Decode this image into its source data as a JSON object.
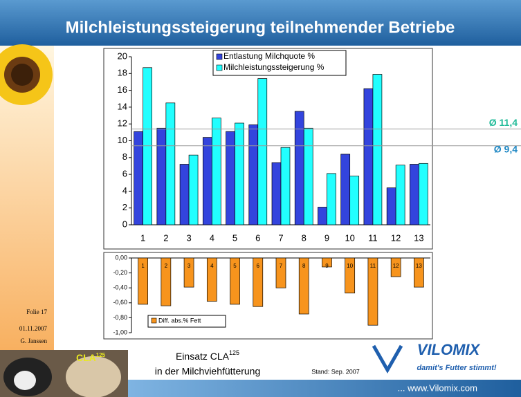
{
  "slide": {
    "title": "Milchleistungssteigerung teilnehmender Betriebe",
    "slide_number": "Folie 17",
    "date": "01.11.2007",
    "author": "G. Janssen",
    "photo_label": "CLA",
    "photo_label_sup": "125",
    "subject_line1": "Einsatz CLA",
    "subject_sup": "125",
    "subject_line2": "in der Milchviehfütterung",
    "status": "Stand: Sep. 2007",
    "brand": "VILOMIX",
    "slogan": "damit's Futter stimmt!",
    "website": "... www.Vilomix.com"
  },
  "chart_data": [
    {
      "type": "bar",
      "categories": [
        "1",
        "2",
        "3",
        "4",
        "5",
        "6",
        "7",
        "8",
        "9",
        "10",
        "11",
        "12",
        "13"
      ],
      "series": [
        {
          "name": "Entlastung Milchquote %",
          "color": "#3344dd",
          "values": [
            11.1,
            11.5,
            7.2,
            10.4,
            11.1,
            11.9,
            7.4,
            13.5,
            2.1,
            8.4,
            16.2,
            4.4,
            7.2
          ]
        },
        {
          "name": "Milchleistungssteigerung %",
          "color": "#22ffff",
          "values": [
            18.7,
            14.5,
            8.3,
            12.7,
            12.1,
            17.4,
            9.2,
            11.5,
            6.1,
            5.8,
            17.9,
            7.1,
            7.3
          ]
        }
      ],
      "ylim": [
        0,
        20
      ],
      "yticks": [
        0,
        2,
        4,
        6,
        8,
        10,
        12,
        14,
        16,
        18,
        20
      ],
      "reference_lines": [
        {
          "value": 11.4,
          "label": "Ø 11,4",
          "color": "#22bb99"
        },
        {
          "value": 9.4,
          "label": "Ø 9,4",
          "color": "#1f88c4"
        }
      ],
      "legend": "top"
    },
    {
      "type": "bar",
      "categories": [
        "1",
        "2",
        "3",
        "4",
        "5",
        "6",
        "7",
        "8",
        "9",
        "10",
        "11",
        "12",
        "13"
      ],
      "series": [
        {
          "name": "Diff. abs.% Fett",
          "color": "#f7941d",
          "values": [
            -0.62,
            -0.64,
            -0.39,
            -0.58,
            -0.62,
            -0.65,
            -0.4,
            -0.75,
            -0.12,
            -0.47,
            -0.9,
            -0.25,
            -0.39
          ]
        }
      ],
      "ylim": [
        -1,
        0
      ],
      "yticks": [
        {
          "value": 0,
          "label": "0,00"
        },
        {
          "value": -0.2,
          "label": "-0,20"
        },
        {
          "value": -0.4,
          "label": "-0,40"
        },
        {
          "value": -0.6,
          "label": "-0,60"
        },
        {
          "value": -0.8,
          "label": "-0,80"
        },
        {
          "value": -1,
          "label": "-1,00"
        }
      ],
      "legend": "bottom-left"
    }
  ]
}
